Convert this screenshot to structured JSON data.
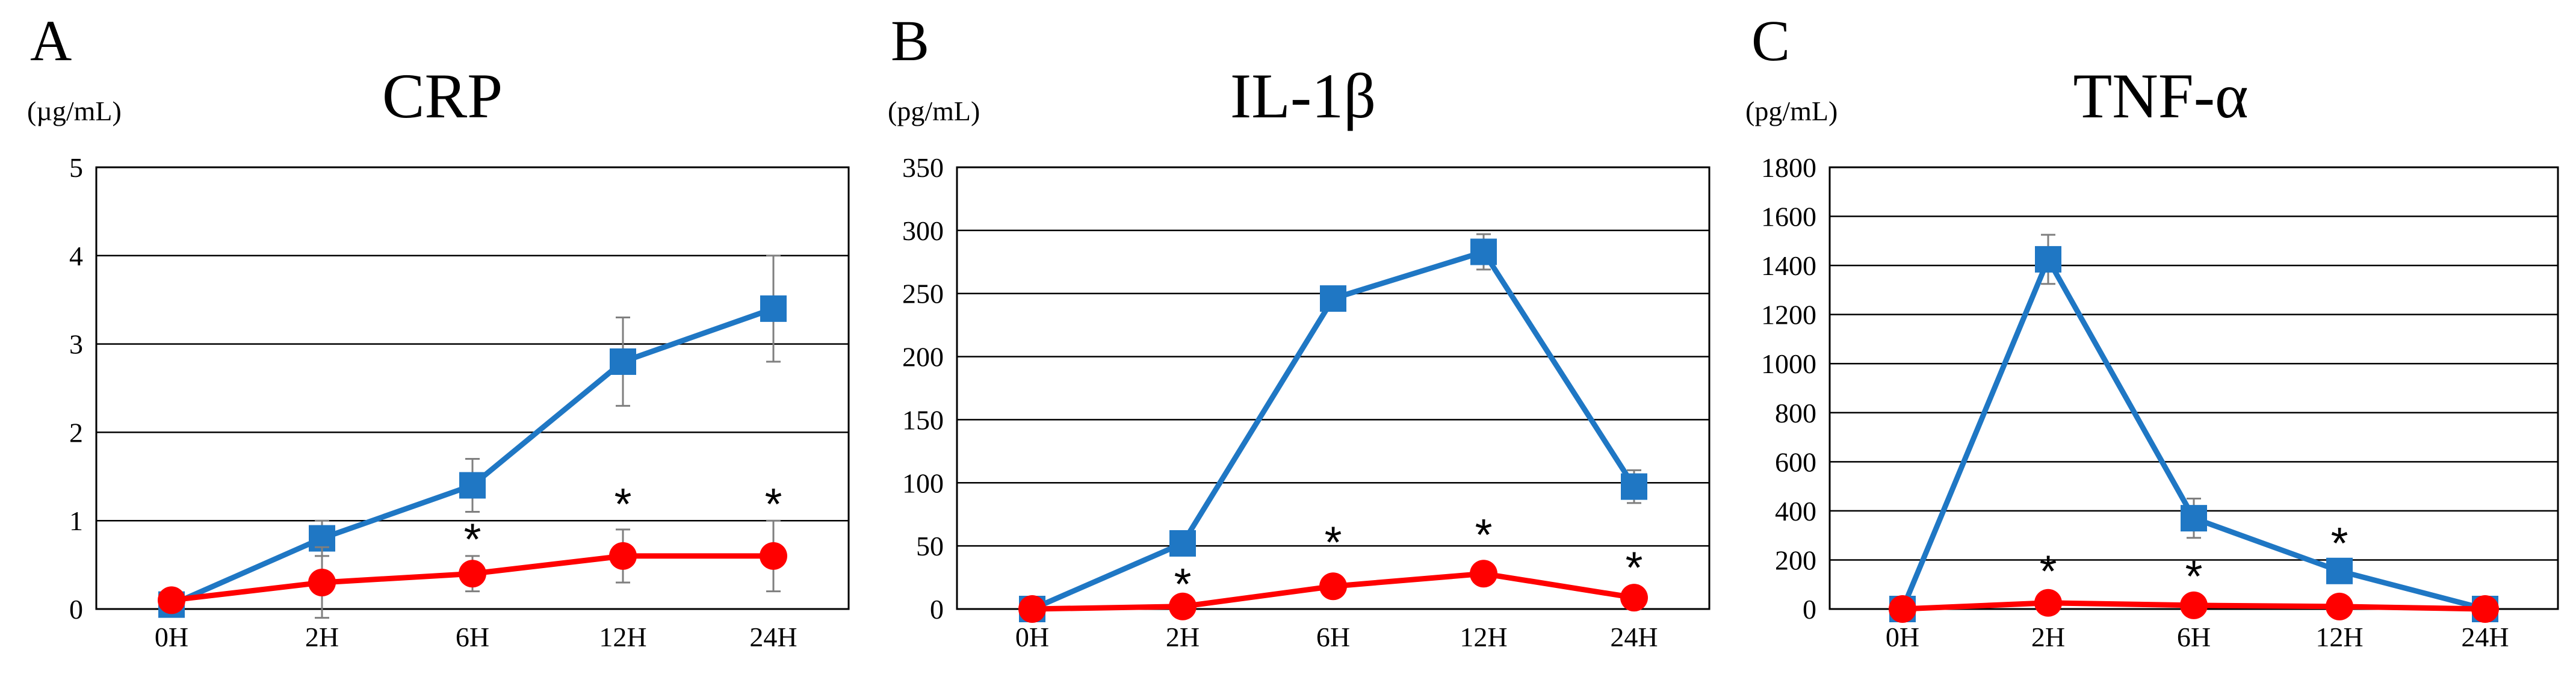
{
  "charts": [
    {
      "panel_label": "A",
      "chart_data": {
        "type": "line",
        "title": "CRP",
        "ylabel": "(µg/mL)",
        "xlabel": "",
        "categories": [
          "0H",
          "2H",
          "6H",
          "12H",
          "24H"
        ],
        "ylim": [
          0,
          5
        ],
        "yticks": [
          0,
          1,
          2,
          3,
          4,
          5
        ],
        "grid": true,
        "series": [
          {
            "marker": "square",
            "color": "#1f77c4",
            "values": [
              0.05,
              0.8,
              1.4,
              2.8,
              3.4
            ],
            "errors": [
              0.05,
              0.2,
              0.3,
              0.5,
              0.6
            ]
          },
          {
            "marker": "circle",
            "color": "#ff0000",
            "values": [
              0.1,
              0.3,
              0.4,
              0.6,
              0.6
            ],
            "errors": [
              0.05,
              0.4,
              0.2,
              0.3,
              0.4
            ]
          }
        ],
        "significance": [
          {
            "category": "6H",
            "label": "*",
            "y": 0.82
          },
          {
            "category": "12H",
            "label": "*",
            "y": 1.22
          },
          {
            "category": "24H",
            "label": "*",
            "y": 1.22
          }
        ]
      }
    },
    {
      "panel_label": "B",
      "chart_data": {
        "type": "line",
        "title": "IL-1β",
        "ylabel": "(pg/mL)",
        "xlabel": "",
        "categories": [
          "0H",
          "2H",
          "6H",
          "12H",
          "24H"
        ],
        "ylim": [
          0,
          350
        ],
        "yticks": [
          0,
          50,
          100,
          150,
          200,
          250,
          300,
          350
        ],
        "grid": true,
        "series": [
          {
            "marker": "square",
            "color": "#1f77c4",
            "values": [
              0,
              52,
              246,
              283,
              97
            ],
            "errors": [
              0,
              4,
              6,
              14,
              13
            ]
          },
          {
            "marker": "circle",
            "color": "#ff0000",
            "values": [
              0,
              2,
              18,
              28,
              9
            ],
            "errors": [
              0,
              1,
              2,
              3,
              2
            ]
          }
        ],
        "significance": [
          {
            "category": "2H",
            "label": "*",
            "y": 22
          },
          {
            "category": "6H",
            "label": "*",
            "y": 55
          },
          {
            "category": "12H",
            "label": "*",
            "y": 61
          },
          {
            "category": "24H",
            "label": "*",
            "y": 35
          }
        ]
      }
    },
    {
      "panel_label": "C",
      "chart_data": {
        "type": "line",
        "title": "TNF-α",
        "ylabel": "(pg/mL)",
        "xlabel": "",
        "categories": [
          "0H",
          "2H",
          "6H",
          "12H",
          "24H"
        ],
        "ylim": [
          0,
          1800
        ],
        "yticks": [
          0,
          200,
          400,
          600,
          800,
          1000,
          1200,
          1400,
          1600,
          1800
        ],
        "grid": true,
        "series": [
          {
            "marker": "square",
            "color": "#1f77c4",
            "values": [
              0,
              1425,
              370,
              155,
              0
            ],
            "errors": [
              0,
              100,
              80,
              20,
              0
            ]
          },
          {
            "marker": "circle",
            "color": "#ff0000",
            "values": [
              0,
              25,
              15,
              10,
              0
            ],
            "errors": [
              0,
              5,
              5,
              3,
              0
            ]
          }
        ],
        "significance": [
          {
            "category": "2H",
            "label": "*",
            "y": 165
          },
          {
            "category": "6H",
            "label": "*",
            "y": 145
          },
          {
            "category": "12H",
            "label": "*",
            "y": 280
          }
        ]
      }
    }
  ]
}
